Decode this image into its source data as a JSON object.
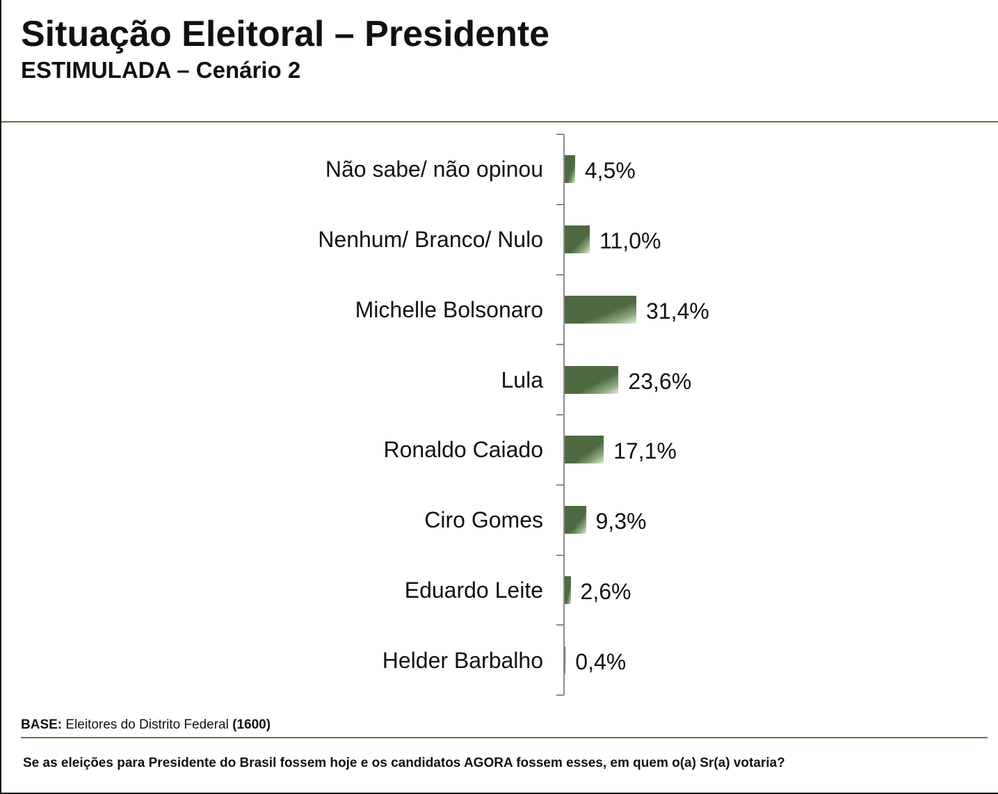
{
  "slide": {
    "title": "Situação Eleitoral – Presidente",
    "subtitle": "ESTIMULADA – Cenário 2"
  },
  "footer": {
    "base_label": "BASE:",
    "base_text": "Eleitores do Distrito Federal",
    "base_count": "(1600)",
    "question": "Se as eleições para Presidente do Brasil fossem hoje e os candidatos AGORA fossem esses, em quem o(a) Sr(a) votaria?"
  },
  "colors": {
    "accent_line": "#5b763f",
    "bar": "#4e6a41",
    "bar_highlight": "#e3eedc",
    "axis": "#8c8c8c",
    "text": "#111111"
  },
  "chart_data": {
    "type": "bar",
    "orientation": "horizontal",
    "categories": [
      "Não sabe/ não opinou",
      "Nenhum/ Branco/ Nulo",
      "Michelle Bolsonaro",
      "Lula",
      "Ronaldo Caiado",
      "Ciro Gomes",
      "Eduardo Leite",
      "Helder Barbalho"
    ],
    "values": [
      4.5,
      11.0,
      31.4,
      23.6,
      17.1,
      9.3,
      2.6,
      0.4
    ],
    "value_labels": [
      "4,5%",
      "11,0%",
      "31,4%",
      "23,6%",
      "17,1%",
      "9,3%",
      "2,6%",
      "0,4%"
    ],
    "unit": "%",
    "grid": false,
    "legend": "none"
  }
}
